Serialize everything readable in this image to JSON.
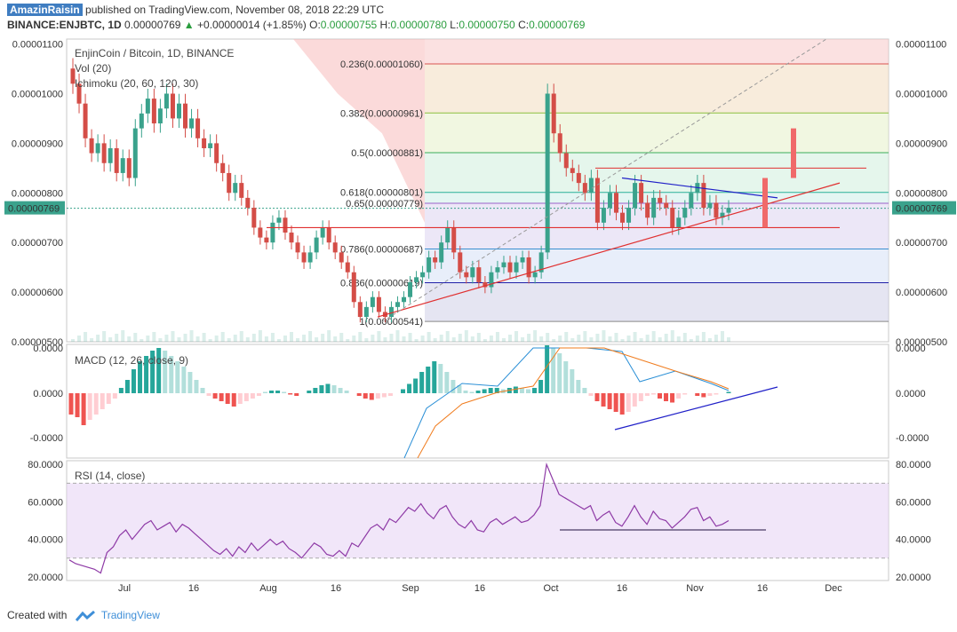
{
  "header": {
    "author": "AmazinRaisin",
    "published": "published on TradingView.com, November 08, 2018 22:29 UTC",
    "symbol": "BINANCE:ENJBTC, 1D",
    "last": "0.00000769",
    "change": "+0.00000014 (+1.85%)",
    "o_label": "O:",
    "open": "0.00000755",
    "h_label": "H:",
    "high": "0.00000780",
    "l_label": "L:",
    "low": "0.00000750",
    "c_label": "C:",
    "close": "0.00000769"
  },
  "footer": {
    "created_with": "Created with",
    "brand": "TradingView"
  },
  "colors": {
    "up_candle": "#3aa28c",
    "down_candle": "#d44d47",
    "rsi_line": "#8e3aa6",
    "macd_line": "#2a8fd6",
    "signal_line": "#f07c1e",
    "trend_red": "#e03030",
    "trend_blue": "#2020c8"
  },
  "chart_data": [
    {
      "type": "candlestick",
      "title": "EnjinCoin / Bitcoin, 1D, BINANCE",
      "indicators": [
        "Vol (20)",
        "Ichimoku (20, 60, 120, 30)"
      ],
      "x_ticks": [
        "Jul",
        "16",
        "Aug",
        "16",
        "Sep",
        "16",
        "Oct",
        "16",
        "Nov",
        "16",
        "Dec"
      ],
      "y_ticks": [
        "0.00001100",
        "0.00001000",
        "0.00000900",
        "0.00000800",
        "0.00000700",
        "0.00000600",
        "0.00000500"
      ],
      "ylim": [
        5e-06,
        1.11e-05
      ],
      "current_price_label": "0.00000769",
      "current_price": 7.69e-06,
      "fib_levels": [
        {
          "label": "0.236(0.00001060)",
          "ratio": 0.236,
          "value": 1.06e-05,
          "color": "#d9534f"
        },
        {
          "label": "0.382(0.00000961)",
          "ratio": 0.382,
          "value": 9.61e-06,
          "color": "#8cbf3f"
        },
        {
          "label": "0.5(0.00000881)",
          "ratio": 0.5,
          "value": 8.81e-06,
          "color": "#3cae5a"
        },
        {
          "label": "0.618(0.00000801)",
          "ratio": 0.618,
          "value": 8.01e-06,
          "color": "#2ab09a"
        },
        {
          "label": "0.65(0.00000779)",
          "ratio": 0.65,
          "value": 7.79e-06,
          "color": "#9a62c9"
        },
        {
          "label": "0.786(0.00000687)",
          "ratio": 0.786,
          "value": 6.87e-06,
          "color": "#3a8fd0"
        },
        {
          "label": "0.886(0.00000619)",
          "ratio": 0.886,
          "value": 6.19e-06,
          "color": "#2020a8"
        },
        {
          "label": "1(0.00000541)",
          "ratio": 1,
          "value": 5.41e-06,
          "color": "#888888"
        }
      ],
      "closes": [
        1.02e-05,
        9.8e-06,
        9.1e-06,
        8.8e-06,
        9e-06,
        8.6e-06,
        8.9e-06,
        8.4e-06,
        8.7e-06,
        8.3e-06,
        9.3e-06,
        9.6e-06,
        9.9e-06,
        9.4e-06,
        9.7e-06,
        1e-05,
        9.5e-06,
        9.8e-06,
        9.3e-06,
        9.5e-06,
        9.1e-06,
        8.9e-06,
        9e-06,
        8.6e-06,
        8.4e-06,
        8e-06,
        8.2e-06,
        7.9e-06,
        7.7e-06,
        7.3e-06,
        7.1e-06,
        7e-06,
        7.4e-06,
        7.5e-06,
        7.2e-06,
        7e-06,
        6.8e-06,
        6.6e-06,
        6.8e-06,
        7.1e-06,
        7.3e-06,
        7e-06,
        6.8e-06,
        6.6e-06,
        6.4e-06,
        5.8e-06,
        5.5e-06,
        5.7e-06,
        5.9e-06,
        5.6e-06,
        5.5e-06,
        5.7e-06,
        5.8e-06,
        5.9e-06,
        6.2e-06,
        6.3e-06,
        6.4e-06,
        6.7e-06,
        6.6e-06,
        7e-06,
        7.3e-06,
        6.8e-06,
        6.4e-06,
        6.3e-06,
        6.5e-06,
        6.2e-06,
        6.1e-06,
        6.4e-06,
        6.5e-06,
        6.6e-06,
        6.4e-06,
        6.6e-06,
        6.7e-06,
        6.3e-06,
        6.4e-06,
        6.8e-06,
        1e-05,
        9.2e-06,
        8.8e-06,
        8.5e-06,
        8.4e-06,
        8.2e-06,
        8e-06,
        8.3e-06,
        7.4e-06,
        7.7e-06,
        8e-06,
        7.6e-06,
        7.4e-06,
        7.7e-06,
        8.2e-06,
        7.8e-06,
        7.5e-06,
        7.9e-06,
        7.8e-06,
        7.7e-06,
        7.3e-06,
        7.5e-06,
        7.7e-06,
        8e-06,
        8.2e-06,
        7.7e-06,
        7.8e-06,
        7.5e-06,
        7.6e-06,
        7.7e-06
      ]
    },
    {
      "type": "bar",
      "title": "MACD (12, 26, close, 9)",
      "y_ticks": [
        "0.0000",
        "0.0000",
        "-0.0000"
      ],
      "histogram": [
        -0.8,
        -0.9,
        -1.2,
        -1.0,
        -0.8,
        -0.6,
        -0.4,
        -0.2,
        0.2,
        0.5,
        0.9,
        1.2,
        1.4,
        1.6,
        1.7,
        1.6,
        1.4,
        1.2,
        1.0,
        0.8,
        0.5,
        0.2,
        -0.1,
        -0.2,
        -0.3,
        -0.4,
        -0.5,
        -0.4,
        -0.3,
        -0.2,
        -0.1,
        0.05,
        0.1,
        0.1,
        0.05,
        -0.05,
        -0.1,
        0.0,
        0.1,
        0.2,
        0.3,
        0.35,
        0.3,
        0.2,
        0.1,
        0.0,
        -0.1,
        -0.2,
        -0.25,
        -0.2,
        -0.15,
        -0.1,
        0.0,
        0.15,
        0.35,
        0.55,
        0.8,
        1.0,
        1.2,
        1.1,
        0.8,
        0.5,
        0.3,
        0.1,
        0.05,
        0.1,
        0.15,
        0.2,
        0.2,
        0.15,
        0.2,
        0.25,
        0.2,
        0.15,
        0.2,
        0.5,
        1.8,
        1.7,
        1.5,
        1.2,
        0.9,
        0.5,
        0.2,
        -0.1,
        -0.3,
        -0.5,
        -0.6,
        -0.7,
        -0.8,
        -0.7,
        -0.5,
        -0.3,
        -0.1,
        -0.05,
        -0.2,
        -0.3,
        -0.35,
        -0.2,
        -0.05,
        0.0,
        -0.1,
        -0.15,
        -0.1,
        -0.05,
        0.0,
        0.05
      ]
    },
    {
      "type": "line",
      "title": "RSI (14, close)",
      "y_ticks": [
        "80.0000",
        "60.0000",
        "40.0000",
        "20.0000"
      ],
      "ylim": [
        18,
        82
      ],
      "bands": [
        30,
        70
      ],
      "values": [
        29,
        27,
        26,
        25,
        24,
        22,
        33,
        36,
        42,
        45,
        40,
        44,
        48,
        50,
        45,
        47,
        49,
        44,
        48,
        46,
        43,
        40,
        37,
        34,
        32,
        35,
        31,
        36,
        33,
        38,
        34,
        37,
        40,
        37,
        39,
        35,
        33,
        30,
        34,
        38,
        36,
        32,
        31,
        34,
        31,
        38,
        36,
        41,
        46,
        48,
        45,
        51,
        49,
        53,
        57,
        55,
        59,
        54,
        51,
        56,
        58,
        52,
        48,
        46,
        50,
        45,
        44,
        49,
        51,
        48,
        50,
        52,
        49,
        50,
        53,
        58,
        80,
        72,
        64,
        62,
        60,
        58,
        56,
        58,
        50,
        53,
        55,
        49,
        47,
        52,
        58,
        52,
        48,
        55,
        51,
        50,
        46,
        49,
        52,
        56,
        57,
        50,
        52,
        47,
        48,
        50
      ]
    }
  ]
}
